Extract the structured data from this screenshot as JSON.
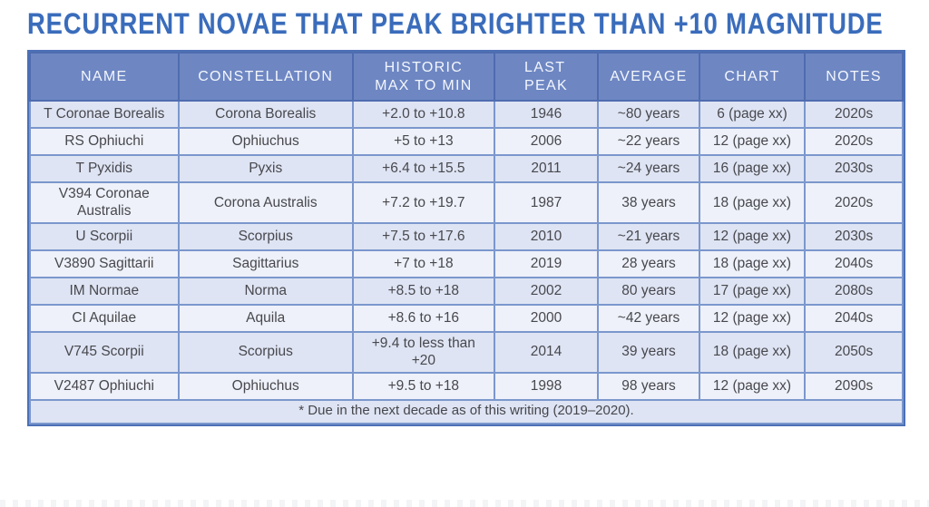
{
  "page": {
    "title": "RECURRENT NOVAE THAT PEAK BRIGHTER THAN +10 MAGNITUDE"
  },
  "colors": {
    "title_text": "#3a6cbb",
    "header_bg": "#6e87c3",
    "header_text": "#f3f6fc",
    "row_odd_bg": "#dee4f3",
    "row_even_bg": "#eef1f9",
    "cell_border": "#7b97cd",
    "header_border": "#4f6cb0",
    "outer_border": "#4c70b6",
    "body_text": "#48484e"
  },
  "table": {
    "columns": [
      {
        "id": "name",
        "lines": [
          "NAME"
        ]
      },
      {
        "id": "constellation",
        "lines": [
          "CONSTELLATION"
        ]
      },
      {
        "id": "historic",
        "lines": [
          "HISTORIC",
          "MAX TO MIN"
        ]
      },
      {
        "id": "last-peak",
        "lines": [
          "LAST",
          "PEAK"
        ],
        "align_block": "left"
      },
      {
        "id": "average",
        "lines": [
          "AVERAGE"
        ]
      },
      {
        "id": "chart",
        "lines": [
          "CHART"
        ]
      },
      {
        "id": "notes",
        "lines": [
          "NOTES"
        ]
      }
    ],
    "rows": [
      [
        "T Coronae Borealis",
        "Corona Borealis",
        "+2.0 to +10.8",
        "1946",
        "~80 years",
        "6 (page xx)",
        "2020s"
      ],
      [
        "RS Ophiuchi",
        "Ophiuchus",
        "+5 to +13",
        "2006",
        "~22 years",
        "12 (page xx)",
        "2020s"
      ],
      [
        "T Pyxidis",
        "Pyxis",
        "+6.4 to +15.5",
        "2011",
        "~24 years",
        "16 (page xx)",
        "2030s"
      ],
      [
        "V394 Coronae Australis",
        "Corona Australis",
        "+7.2 to +19.7",
        "1987",
        "38 years",
        "18 (page xx)",
        "2020s"
      ],
      [
        "U Scorpii",
        "Scorpius",
        "+7.5 to +17.6",
        "2010",
        "~21 years",
        "12 (page xx)",
        "2030s"
      ],
      [
        "V3890 Sagittarii",
        "Sagittarius",
        "+7 to +18",
        "2019",
        "28 years",
        "18 (page xx)",
        "2040s"
      ],
      [
        "IM Normae",
        "Norma",
        "+8.5 to +18",
        "2002",
        "80 years",
        "17 (page xx)",
        "2080s"
      ],
      [
        "CI Aquilae",
        "Aquila",
        "+8.6 to +16",
        "2000",
        "~42 years",
        "12 (page xx)",
        "2040s"
      ],
      [
        "V745 Scorpii",
        "Scorpius",
        "+9.4 to less than +20",
        "2014",
        "39 years",
        "18 (page xx)",
        "2050s"
      ],
      [
        "V2487 Ophiuchi",
        "Ophiuchus",
        "+9.5 to +18",
        "1998",
        "98 years",
        "12 (page xx)",
        "2090s"
      ]
    ],
    "footnote": "* Due in the next decade as of this writing (2019–2020)."
  },
  "chart_data": {
    "type": "table",
    "title": "RECURRENT NOVAE THAT PEAK BRIGHTER THAN +10 MAGNITUDE",
    "columns": [
      "NAME",
      "CONSTELLATION",
      "HISTORIC MAX TO MIN",
      "LAST PEAK",
      "AVERAGE",
      "CHART",
      "NOTES"
    ],
    "rows": [
      [
        "T Coronae Borealis",
        "Corona Borealis",
        "+2.0 to +10.8",
        "1946",
        "~80 years",
        "6 (page xx)",
        "2020s"
      ],
      [
        "RS Ophiuchi",
        "Ophiuchus",
        "+5 to +13",
        "2006",
        "~22 years",
        "12 (page xx)",
        "2020s"
      ],
      [
        "T Pyxidis",
        "Pyxis",
        "+6.4 to +15.5",
        "2011",
        "~24 years",
        "16 (page xx)",
        "2030s"
      ],
      [
        "V394 Coronae Australis",
        "Corona Australis",
        "+7.2 to +19.7",
        "1987",
        "38 years",
        "18 (page xx)",
        "2020s"
      ],
      [
        "U Scorpii",
        "Scorpius",
        "+7.5 to +17.6",
        "2010",
        "~21 years",
        "12 (page xx)",
        "2030s"
      ],
      [
        "V3890 Sagittarii",
        "Sagittarius",
        "+7 to +18",
        "2019",
        "28 years",
        "18 (page xx)",
        "2040s"
      ],
      [
        "IM Normae",
        "Norma",
        "+8.5 to +18",
        "2002",
        "80 years",
        "17 (page xx)",
        "2080s"
      ],
      [
        "CI Aquilae",
        "Aquila",
        "+8.6 to +16",
        "2000",
        "~42 years",
        "12 (page xx)",
        "2040s"
      ],
      [
        "V745 Scorpii",
        "Scorpius",
        "+9.4 to less than +20",
        "2014",
        "39 years",
        "18 (page xx)",
        "2050s"
      ],
      [
        "V2487 Ophiuchi",
        "Ophiuchus",
        "+9.5 to +18",
        "1998",
        "98 years",
        "12 (page xx)",
        "2090s"
      ]
    ],
    "footnote": "* Due in the next decade as of this writing (2019–2020)."
  }
}
